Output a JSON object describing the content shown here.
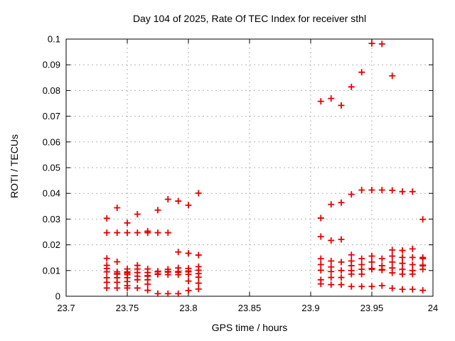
{
  "chart_data": {
    "type": "scatter",
    "title": "Day 104 of 2025, Rate Of TEC Index for receiver sthl",
    "xlabel": "GPS time / hours",
    "ylabel": "ROTI / TECUs",
    "xlim": [
      23.7,
      24
    ],
    "ylim": [
      0,
      0.1
    ],
    "xticks": [
      23.7,
      23.75,
      23.8,
      23.85,
      23.9,
      23.95,
      24
    ],
    "xtick_labels": [
      "23.7",
      "23.75",
      "23.8",
      "23.85",
      "23.9",
      "23.95",
      "24"
    ],
    "yticks": [
      0,
      0.01,
      0.02,
      0.03,
      0.04,
      0.05,
      0.06,
      0.07,
      0.08,
      0.09,
      0.1
    ],
    "ytick_labels": [
      "0",
      "0.01",
      "0.02",
      "0.03",
      "0.04",
      "0.05",
      "0.06",
      "0.07",
      "0.08",
      "0.09",
      "0.1"
    ],
    "grid": true,
    "legend": "none",
    "marker": {
      "shape": "plus",
      "color": "#e60000",
      "size": 4.5
    },
    "series": [
      {
        "name": "ROTI",
        "points": [
          [
            23.7333,
            0.0303
          ],
          [
            23.7333,
            0.0247
          ],
          [
            23.7333,
            0.0147
          ],
          [
            23.7333,
            0.012
          ],
          [
            23.7333,
            0.0108
          ],
          [
            23.7333,
            0.0095
          ],
          [
            23.7333,
            0.0072
          ],
          [
            23.7333,
            0.0054
          ],
          [
            23.7333,
            0.0032
          ],
          [
            23.7417,
            0.0344
          ],
          [
            23.7417,
            0.0247
          ],
          [
            23.7417,
            0.0134
          ],
          [
            23.7417,
            0.0095
          ],
          [
            23.7417,
            0.0088
          ],
          [
            23.7417,
            0.0086
          ],
          [
            23.7417,
            0.0072
          ],
          [
            23.7417,
            0.0054
          ],
          [
            23.7417,
            0.0032
          ],
          [
            23.75,
            0.0285
          ],
          [
            23.75,
            0.0247
          ],
          [
            23.75,
            0.0106
          ],
          [
            23.75,
            0.0095
          ],
          [
            23.75,
            0.009
          ],
          [
            23.75,
            0.0084
          ],
          [
            23.75,
            0.0072
          ],
          [
            23.75,
            0.0057
          ],
          [
            23.75,
            0.0041
          ],
          [
            23.75,
            0.0032
          ],
          [
            23.7583,
            0.0319
          ],
          [
            23.7583,
            0.0247
          ],
          [
            23.7583,
            0.012
          ],
          [
            23.7583,
            0.0106
          ],
          [
            23.7583,
            0.0092
          ],
          [
            23.7583,
            0.0078
          ],
          [
            23.7583,
            0.0064
          ],
          [
            23.7583,
            0.0032
          ],
          [
            23.7667,
            0.0253
          ],
          [
            23.7667,
            0.0247
          ],
          [
            23.7667,
            0.0106
          ],
          [
            23.7667,
            0.0092
          ],
          [
            23.7667,
            0.008
          ],
          [
            23.7667,
            0.0078
          ],
          [
            23.7667,
            0.0064
          ],
          [
            23.7667,
            0.0047
          ],
          [
            23.7667,
            0.0023
          ],
          [
            23.775,
            0.0335
          ],
          [
            23.775,
            0.0247
          ],
          [
            23.775,
            0.0097
          ],
          [
            23.775,
            0.0095
          ],
          [
            23.775,
            0.0087
          ],
          [
            23.775,
            0.0085
          ],
          [
            23.775,
            0.001
          ],
          [
            23.7833,
            0.0377
          ],
          [
            23.7833,
            0.0247
          ],
          [
            23.7833,
            0.0105
          ],
          [
            23.7833,
            0.0096
          ],
          [
            23.7833,
            0.0094
          ],
          [
            23.7833,
            0.0084
          ],
          [
            23.7833,
            0.001
          ],
          [
            23.7917,
            0.037
          ],
          [
            23.7917,
            0.0172
          ],
          [
            23.7917,
            0.011
          ],
          [
            23.7917,
            0.0096
          ],
          [
            23.7917,
            0.0093
          ],
          [
            23.7917,
            0.0084
          ],
          [
            23.7917,
            0.001
          ],
          [
            23.8,
            0.0354
          ],
          [
            23.8,
            0.0167
          ],
          [
            23.8,
            0.0108
          ],
          [
            23.8,
            0.0098
          ],
          [
            23.8,
            0.0095
          ],
          [
            23.8,
            0.0085
          ],
          [
            23.8,
            0.0059
          ],
          [
            23.8,
            0.0022
          ],
          [
            23.8083,
            0.0401
          ],
          [
            23.8083,
            0.016
          ],
          [
            23.8083,
            0.0115
          ],
          [
            23.8083,
            0.0101
          ],
          [
            23.8083,
            0.0088
          ],
          [
            23.8083,
            0.0074
          ],
          [
            23.8083,
            0.0051
          ],
          [
            23.8083,
            0.0028
          ],
          [
            23.9083,
            0.0758
          ],
          [
            23.9083,
            0.0304
          ],
          [
            23.9083,
            0.0232
          ],
          [
            23.9083,
            0.0146
          ],
          [
            23.9083,
            0.0123
          ],
          [
            23.9083,
            0.0101
          ],
          [
            23.9083,
            0.0064
          ],
          [
            23.9083,
            0.0048
          ],
          [
            23.9167,
            0.0769
          ],
          [
            23.9167,
            0.0357
          ],
          [
            23.9167,
            0.0217
          ],
          [
            23.9167,
            0.0137
          ],
          [
            23.9167,
            0.0114
          ],
          [
            23.9167,
            0.0096
          ],
          [
            23.9167,
            0.0073
          ],
          [
            23.9167,
            0.0045
          ],
          [
            23.925,
            0.0742
          ],
          [
            23.925,
            0.0364
          ],
          [
            23.925,
            0.0221
          ],
          [
            23.925,
            0.0133
          ],
          [
            23.925,
            0.01
          ],
          [
            23.925,
            0.0073
          ],
          [
            23.925,
            0.0045
          ],
          [
            23.9333,
            0.0814
          ],
          [
            23.9333,
            0.0396
          ],
          [
            23.9333,
            0.0161
          ],
          [
            23.9333,
            0.0137
          ],
          [
            23.9333,
            0.0119
          ],
          [
            23.9333,
            0.01
          ],
          [
            23.9333,
            0.0086
          ],
          [
            23.9333,
            0.0038
          ],
          [
            23.9417,
            0.0871
          ],
          [
            23.9417,
            0.0413
          ],
          [
            23.9417,
            0.0146
          ],
          [
            23.9417,
            0.0123
          ],
          [
            23.9417,
            0.0105
          ],
          [
            23.9417,
            0.0086
          ],
          [
            23.9417,
            0.0038
          ],
          [
            23.95,
            0.0983
          ],
          [
            23.95,
            0.0413
          ],
          [
            23.95,
            0.0156
          ],
          [
            23.95,
            0.0133
          ],
          [
            23.95,
            0.0108
          ],
          [
            23.95,
            0.0105
          ],
          [
            23.95,
            0.0038
          ],
          [
            23.9583,
            0.0981
          ],
          [
            23.9583,
            0.0413
          ],
          [
            23.9583,
            0.0146
          ],
          [
            23.9583,
            0.0119
          ],
          [
            23.9583,
            0.0104
          ],
          [
            23.9583,
            0.0102
          ],
          [
            23.9583,
            0.0041
          ],
          [
            23.9667,
            0.0857
          ],
          [
            23.9667,
            0.0412
          ],
          [
            23.9667,
            0.018
          ],
          [
            23.9667,
            0.0156
          ],
          [
            23.9667,
            0.0133
          ],
          [
            23.9667,
            0.011
          ],
          [
            23.9667,
            0.0091
          ],
          [
            23.9667,
            0.0031
          ],
          [
            23.975,
            0.0407
          ],
          [
            23.975,
            0.0178
          ],
          [
            23.975,
            0.0151
          ],
          [
            23.975,
            0.0128
          ],
          [
            23.975,
            0.0105
          ],
          [
            23.975,
            0.0086
          ],
          [
            23.975,
            0.0027
          ],
          [
            23.9833,
            0.0407
          ],
          [
            23.9833,
            0.0184
          ],
          [
            23.9833,
            0.0151
          ],
          [
            23.9833,
            0.0123
          ],
          [
            23.9833,
            0.01
          ],
          [
            23.9833,
            0.0086
          ],
          [
            23.9833,
            0.0027
          ],
          [
            23.9917,
            0.0299
          ],
          [
            23.9917,
            0.0151
          ],
          [
            23.9917,
            0.0146
          ],
          [
            23.9917,
            0.0121
          ],
          [
            23.9917,
            0.0118
          ],
          [
            23.9917,
            0.0105
          ],
          [
            23.9917,
            0.0023
          ]
        ]
      }
    ]
  },
  "colors": {
    "background": "#ffffff",
    "marker": "#e60000",
    "grid": "#b3b3b3",
    "axis": "#000000",
    "text": "#000000"
  }
}
